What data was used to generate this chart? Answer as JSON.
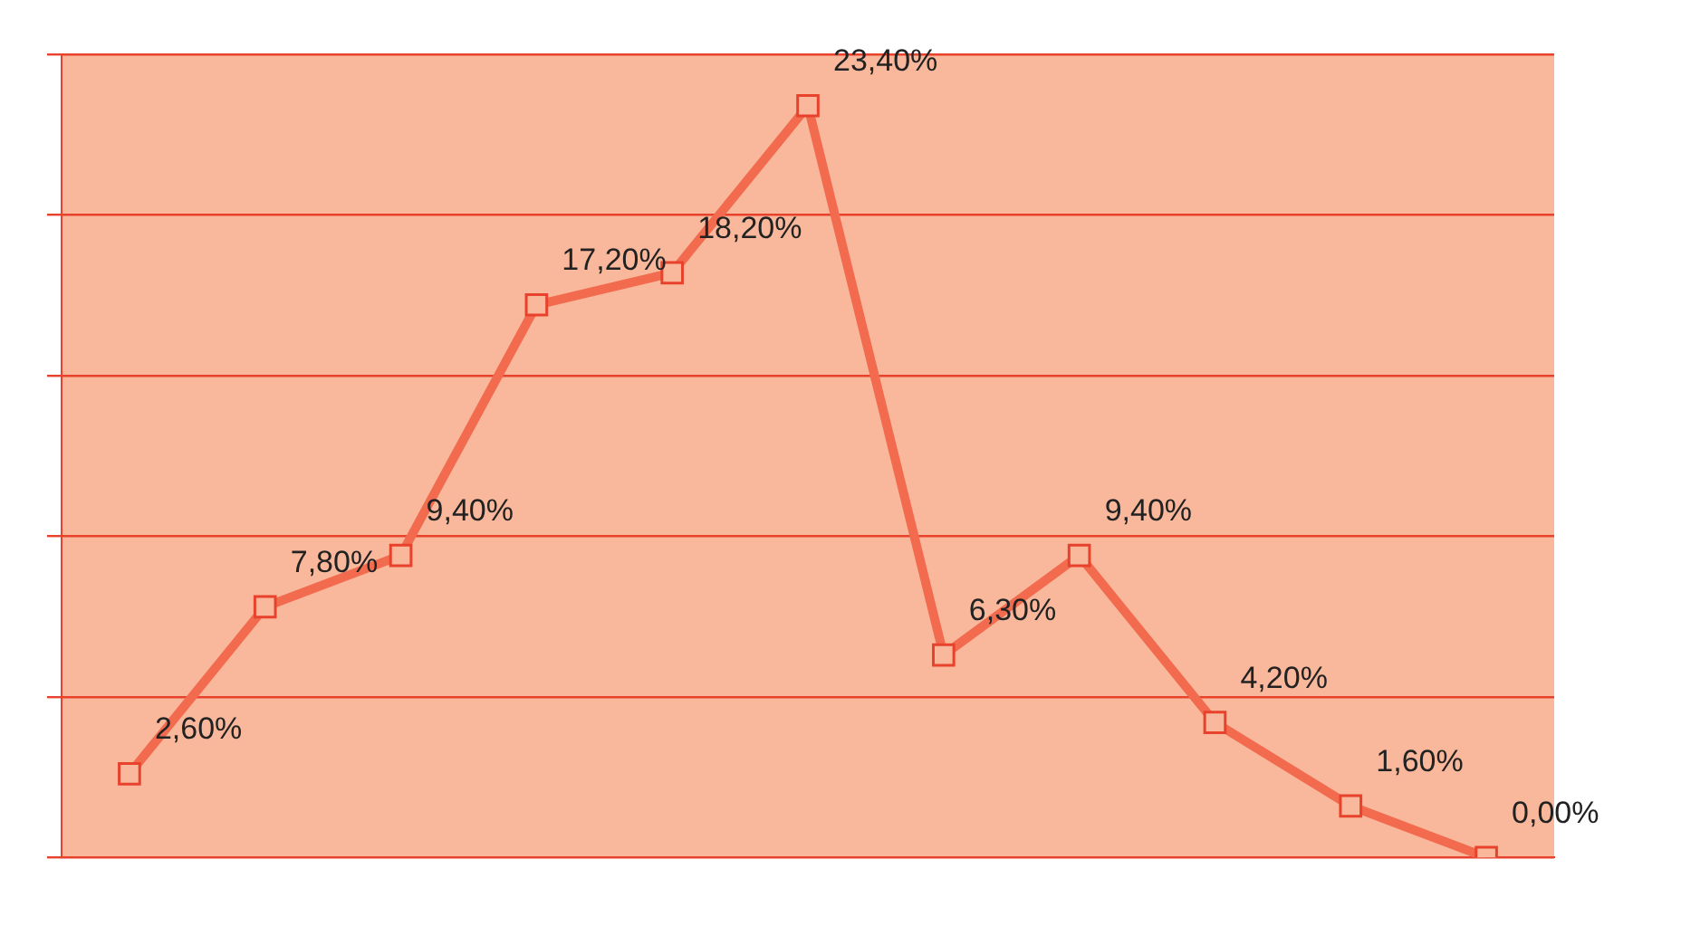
{
  "chart_data": {
    "type": "line",
    "categories": [
      null,
      null,
      null,
      null,
      null,
      null,
      null,
      null,
      null,
      null,
      null
    ],
    "series": [
      {
        "color": "#f26b4f",
        "values": [
          2.6,
          7.8,
          9.4,
          17.2,
          18.2,
          23.4,
          6.3,
          9.4,
          4.2,
          1.6,
          0.0
        ],
        "value_labels": [
          "2,60%",
          "7,80%",
          "9,40%",
          "17,20%",
          "18,20%",
          "23,40%",
          "6,30%",
          "9,40%",
          "4,20%",
          "1,60%",
          "0,00%"
        ]
      }
    ],
    "ylim": [
      0,
      25
    ],
    "yticks": [
      {
        "value": 0,
        "label": null
      },
      {
        "value": 5,
        "label": null
      },
      {
        "value": 10,
        "label": null
      },
      {
        "value": 15,
        "label": null
      },
      {
        "value": 20,
        "label": null
      },
      {
        "value": 25,
        "label": null
      }
    ],
    "grid": "y",
    "legend": false,
    "marker": "square",
    "line_style": "solid"
  }
}
